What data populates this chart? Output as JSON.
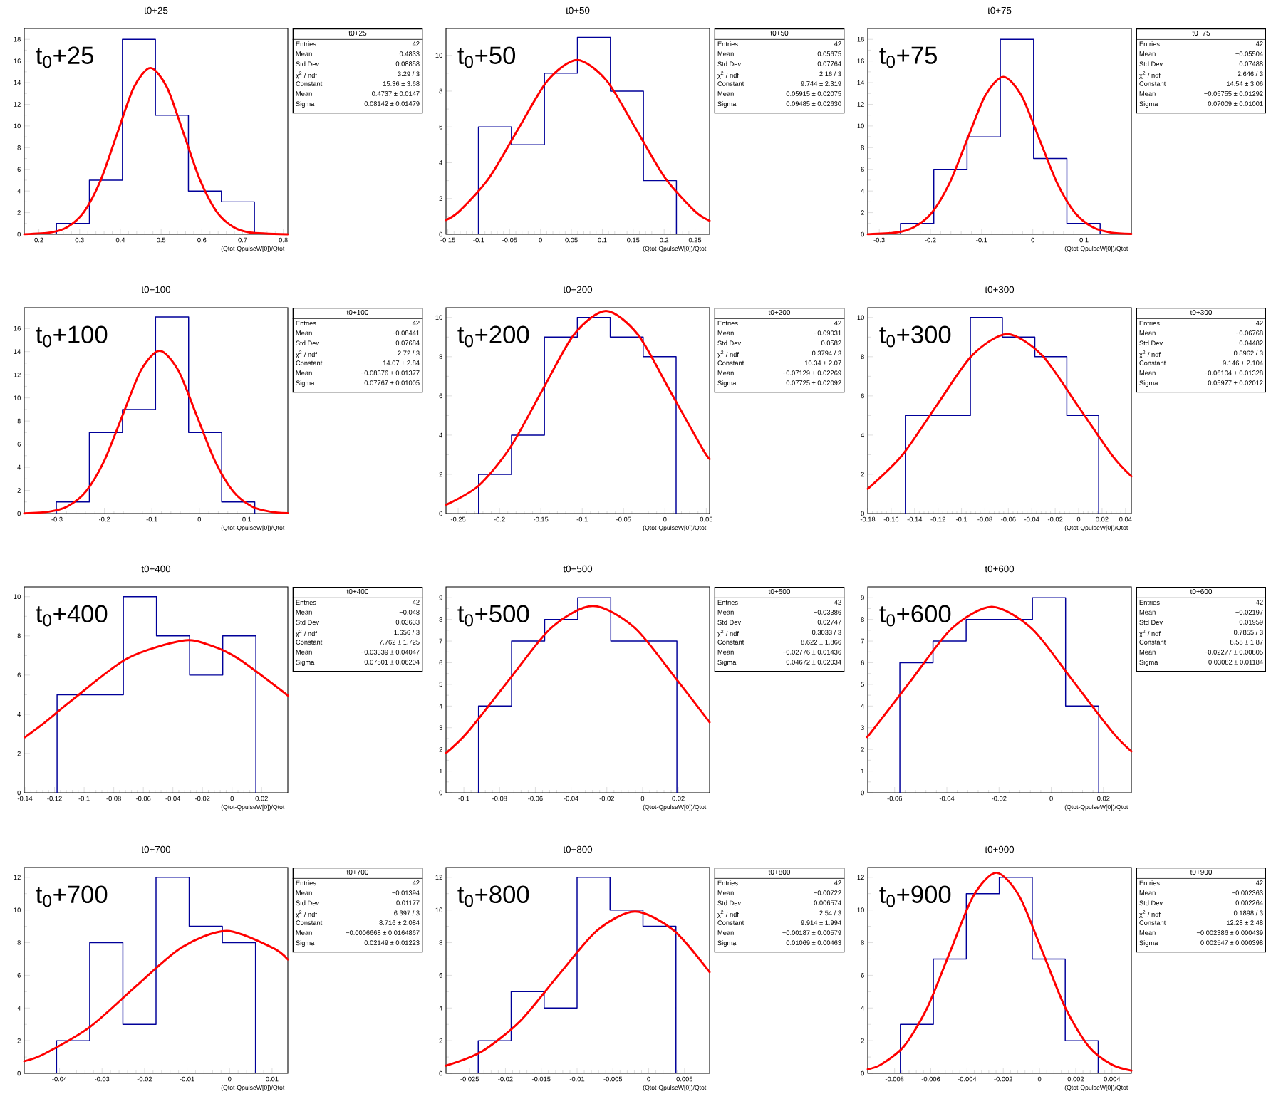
{
  "chart_data": [
    {
      "type": "histogram",
      "title": "t0+25",
      "xlabel": "(Qtot-QpulseW[0])/Qtot",
      "xlim": [
        0.164,
        0.811
      ],
      "ylim": [
        0,
        19
      ],
      "xticks": [
        0.2,
        0.3,
        0.4,
        0.5,
        0.6,
        0.7,
        0.8
      ],
      "yticks": [
        0,
        2,
        4,
        6,
        8,
        10,
        12,
        14,
        16,
        18
      ],
      "annotations": [
        "t$_{0}$+25",
        "t0+25",
        "Entries",
        "42",
        "Mean",
        "0.4833",
        "Std Dev",
        "0.08858",
        "χ$^{2}$ / ndf",
        "3.29 / 3",
        "Constant",
        "15.36 ± 3.68",
        "Mean",
        "0.4737 ± 0.0147",
        "Sigma",
        "0.08142 ± 0.01479"
      ],
      "series": [
        {
          "type": "histogram",
          "color": "#000099",
          "bins": [
            0.243,
            0.324,
            0.405,
            0.486,
            0.567,
            0.648,
            0.729
          ],
          "values": [
            1,
            5,
            18,
            11,
            4,
            3
          ]
        },
        {
          "type": "line",
          "color": "#ff0000",
          "x": [
            0.164,
            0.2294,
            0.2702,
            0.3109,
            0.3516,
            0.3923,
            0.433,
            0.4737,
            0.5144,
            0.5551,
            0.5958,
            0.6365,
            0.6773,
            0.718,
            0.811
          ],
          "values": [
            0.01,
            0.17,
            0.67,
            2.08,
            4.99,
            9.32,
            13.56,
            15.36,
            13.56,
            9.32,
            4.99,
            2.08,
            0.67,
            0.17,
            0.0
          ]
        }
      ]
    },
    {
      "type": "histogram",
      "title": "t0+50",
      "xlabel": "(Qtot-QpulseW[0])/Qtot",
      "xlim": [
        -0.153,
        0.2736
      ],
      "ylim": [
        0,
        11.5
      ],
      "xticks": [
        -0.15,
        -0.1,
        -0.05,
        0,
        0.05,
        0.1,
        0.15,
        0.2,
        0.25
      ],
      "yticks": [
        0,
        2,
        4,
        6,
        8,
        10
      ],
      "annotations": [
        "t$_{0}$+50",
        "t0+50",
        "Entries",
        "42",
        "Mean",
        "0.05675",
        "Std Dev",
        "0.07764",
        "χ$^{2}$ / ndf",
        "2.16 / 3",
        "Constant",
        "9.744 ± 2.319",
        "Mean",
        "0.05915 ± 0.02075",
        "Sigma",
        "0.09485 ± 0.02630"
      ],
      "series": [
        {
          "type": "histogram",
          "color": "#000099",
          "bins": [
            -0.1005,
            -0.0471,
            0.0063,
            0.0597,
            0.1131,
            0.1665,
            0.2199
          ],
          "values": [
            6,
            5,
            9,
            11,
            8,
            3
          ]
        },
        {
          "type": "line",
          "color": "#ff0000",
          "x": [
            -0.153,
            -0.1306,
            -0.0831,
            -0.0357,
            0.0117,
            0.0592,
            0.1066,
            0.154,
            0.2014,
            0.2489,
            0.2736
          ],
          "values": [
            0.8,
            1.32,
            3.16,
            5.91,
            8.6,
            9.74,
            8.6,
            5.91,
            3.16,
            1.32,
            0.76
          ]
        }
      ]
    },
    {
      "type": "histogram",
      "title": "t0+75",
      "xlabel": "(Qtot-QpulseW[0])/Qtot",
      "xlim": [
        -0.3225,
        0.1925
      ],
      "ylim": [
        0,
        19
      ],
      "xticks": [
        -0.3,
        -0.2,
        -0.1,
        0,
        0.1
      ],
      "yticks": [
        0,
        2,
        4,
        6,
        8,
        10,
        12,
        14,
        16,
        18
      ],
      "annotations": [
        "t$_{0}$+75",
        "t0+75",
        "Entries",
        "42",
        "Mean",
        "−0.05504",
        "Std Dev",
        "0.07488",
        "χ$^{2}$ / ndf",
        "2.646 / 3",
        "Constant",
        "14.54 ± 3.06",
        "Mean",
        "−0.05755 ± 0.01292",
        "Sigma",
        "0.07009 ± 0.01001"
      ],
      "series": [
        {
          "type": "histogram",
          "color": "#000099",
          "bins": [
            -0.2585,
            -0.1935,
            -0.1285,
            -0.0635,
            0.0015,
            0.0665,
            0.1315
          ],
          "values": [
            1,
            6,
            9,
            18,
            7,
            1
          ]
        },
        {
          "type": "line",
          "color": "#ff0000",
          "x": [
            -0.3225,
            -0.2678,
            -0.2328,
            -0.1977,
            -0.1627,
            -0.1277,
            -0.0926,
            -0.0576,
            -0.0225,
            0.0125,
            0.0476,
            0.0826,
            0.1177,
            0.1527,
            0.1925
          ],
          "values": [
            0.01,
            0.16,
            0.64,
            1.97,
            4.72,
            8.82,
            12.83,
            14.54,
            12.83,
            8.82,
            4.72,
            1.97,
            0.64,
            0.16,
            0.03
          ]
        }
      ]
    },
    {
      "type": "histogram",
      "title": "t0+100",
      "xlabel": "(Qtot-QpulseW[0])/Qtot",
      "xlim": [
        -0.369,
        0.1865
      ],
      "ylim": [
        0,
        17.8
      ],
      "xticks": [
        -0.3,
        -0.2,
        -0.1,
        0,
        0.1
      ],
      "yticks": [
        0,
        2,
        4,
        6,
        8,
        10,
        12,
        14,
        16
      ],
      "annotations": [
        "t$_{0}$+100",
        "t0+100",
        "Entries",
        "42",
        "Mean",
        "−0.08441",
        "Std Dev",
        "0.07684",
        "χ$^{2}$ / ndf",
        "2.72 / 3",
        "Constant",
        "14.07 ± 2.84",
        "Mean",
        "−0.08376 ± 0.01377",
        "Sigma",
        "0.07767 ± 0.01005"
      ],
      "series": [
        {
          "type": "histogram",
          "color": "#000099",
          "bins": [
            -0.3014,
            -0.2317,
            -0.162,
            -0.0923,
            -0.0226,
            0.0471,
            0.1168
          ],
          "values": [
            1,
            7,
            9,
            17,
            7,
            1
          ]
        },
        {
          "type": "line",
          "color": "#ff0000",
          "x": [
            -0.369,
            -0.3168,
            -0.2779,
            -0.2391,
            -0.2003,
            -0.1614,
            -0.1226,
            -0.0838,
            -0.0449,
            -0.0061,
            0.0327,
            0.0716,
            0.1104,
            0.1493,
            0.1865
          ],
          "values": [
            0.02,
            0.16,
            0.62,
            1.9,
            4.57,
            8.53,
            12.42,
            14.07,
            12.42,
            8.53,
            4.57,
            1.9,
            0.62,
            0.16,
            0.03
          ]
        }
      ]
    },
    {
      "type": "histogram",
      "title": "t0+200",
      "xlabel": "(Qtot-QpulseW[0])/Qtot",
      "xlim": [
        -0.2647,
        0.054
      ],
      "ylim": [
        0,
        10.5
      ],
      "xticks": [
        -0.25,
        -0.2,
        -0.15,
        -0.1,
        -0.05,
        0,
        0.05
      ],
      "yticks": [
        0,
        2,
        4,
        6,
        8,
        10
      ],
      "annotations": [
        "t$_{0}$+200",
        "t0+200",
        "Entries",
        "42",
        "Mean",
        "−0.09031",
        "Std Dev",
        "0.0582",
        "χ$^{2}$ / ndf",
        "0.3794 / 3",
        "Constant",
        "10.34 ± 2.07",
        "Mean",
        "−0.07129 ± 0.02269",
        "Sigma",
        "0.07725 ± 0.02092"
      ],
      "series": [
        {
          "type": "histogram",
          "color": "#000099",
          "bins": [
            -0.2253,
            -0.1855,
            -0.1457,
            -0.1059,
            -0.0661,
            -0.0263,
            0.0135
          ],
          "values": [
            2,
            4,
            9,
            10,
            9,
            8
          ]
        },
        {
          "type": "line",
          "color": "#ff0000",
          "x": [
            -0.2644,
            -0.2258,
            -0.1872,
            -0.1485,
            -0.1099,
            -0.0713,
            -0.0327,
            0.006,
            0.0446,
            0.054
          ],
          "values": [
            0.45,
            1.4,
            3.36,
            6.27,
            9.13,
            10.34,
            9.13,
            6.27,
            3.36,
            2.78
          ]
        }
      ]
    },
    {
      "type": "histogram",
      "title": "t0+300",
      "xlabel": "(Qtot-QpulseW[0])/Qtot",
      "xlim": [
        -0.18,
        0.045
      ],
      "ylim": [
        0,
        10.5
      ],
      "xticks": [
        -0.18,
        -0.16,
        -0.14,
        -0.12,
        -0.1,
        -0.08,
        -0.06,
        -0.04,
        -0.02,
        0,
        0.02,
        0.04
      ],
      "yticks": [
        0,
        2,
        4,
        6,
        8,
        10
      ],
      "annotations": [
        "t$_{0}$+300",
        "t0+300",
        "Entries",
        "42",
        "Mean",
        "−0.06768",
        "Std Dev",
        "0.04482",
        "χ$^{2}$ / ndf",
        "0.8962 / 3",
        "Constant",
        "9.146 ± 2.104",
        "Mean",
        "−0.06104 ± 0.01328",
        "Sigma",
        "0.05977 ± 0.02012"
      ],
      "series": [
        {
          "type": "histogram",
          "color": "#000099",
          "bins": [
            -0.1479,
            -0.1201,
            -0.0924,
            -0.0651,
            -0.0374,
            -0.0101,
            0.0171
          ],
          "values": [
            5,
            5,
            10,
            9,
            8,
            5
          ]
        },
        {
          "type": "line",
          "color": "#ff0000",
          "x": [
            -0.18,
            -0.1507,
            -0.1208,
            -0.0909,
            -0.061,
            -0.0312,
            -0.0013,
            0.0286,
            0.045
          ],
          "values": [
            1.26,
            2.97,
            5.55,
            8.07,
            9.15,
            8.07,
            5.55,
            2.97,
            1.9
          ]
        }
      ]
    },
    {
      "type": "histogram",
      "title": "t0+400",
      "xlabel": "(Qtot-QpulseW[0])/Qtot",
      "xlim": [
        -0.1405,
        0.0377
      ],
      "ylim": [
        0,
        10.5
      ],
      "xticks": [
        -0.14,
        -0.12,
        -0.1,
        -0.08,
        -0.06,
        -0.04,
        -0.02,
        0,
        0.02
      ],
      "yticks": [
        0,
        2,
        4,
        6,
        8,
        10
      ],
      "annotations": [
        "t$_{0}$+400",
        "t0+400",
        "Entries",
        "42",
        "Mean",
        "−0.048",
        "Std Dev",
        "0.03633",
        "χ$^{2}$ / ndf",
        "1.656 / 3",
        "Constant",
        "7.762 ± 1.725",
        "Mean",
        "−0.03339 ± 0.04047",
        "Sigma",
        "0.07501 ± 0.06204"
      ],
      "series": [
        {
          "type": "histogram",
          "color": "#000099",
          "bins": [
            -0.1183,
            -0.0959,
            -0.0735,
            -0.0511,
            -0.0287,
            -0.0063,
            0.0161
          ],
          "values": [
            5,
            5,
            10,
            8,
            6,
            8
          ]
        },
        {
          "type": "line",
          "color": "#ff0000",
          "x": [
            -0.14,
            -0.1272,
            -0.1084,
            -0.0709,
            -0.0334,
            -0.0146,
            0.0041,
            0.0377
          ],
          "values": [
            2.83,
            3.55,
            4.71,
            6.85,
            7.76,
            7.52,
            6.85,
            4.96
          ]
        }
      ]
    },
    {
      "type": "histogram",
      "title": "t0+500",
      "xlabel": "(Qtot-QpulseW[0])/Qtot",
      "xlim": [
        -0.11,
        0.0375
      ],
      "ylim": [
        0,
        9.5
      ],
      "xticks": [
        -0.1,
        -0.08,
        -0.06,
        -0.04,
        -0.02,
        0,
        0.02
      ],
      "yticks": [
        0,
        1,
        2,
        3,
        4,
        5,
        6,
        7,
        8,
        9
      ],
      "annotations": [
        "t$_{0}$+500",
        "t0+500",
        "Entries",
        "42",
        "Mean",
        "−0.03386",
        "Std Dev",
        "0.02747",
        "χ$^{2}$ / ndf",
        "0.3033 / 3",
        "Constant",
        "8.622 ± 1.866",
        "Mean",
        "−0.02776 ± 0.01436",
        "Sigma",
        "0.04672 ± 0.02034"
      ],
      "series": [
        {
          "type": "histogram",
          "color": "#000099",
          "bins": [
            -0.0918,
            -0.0733,
            -0.0548,
            -0.0363,
            -0.0178,
            0.0007,
            0.0192
          ],
          "values": [
            4,
            7,
            8,
            9,
            7,
            7
          ]
        },
        {
          "type": "line",
          "color": "#ff0000",
          "x": [
            -0.11,
            -0.0978,
            -0.0745,
            -0.0511,
            -0.0278,
            -0.0044,
            0.019,
            0.0375
          ],
          "values": [
            1.83,
            2.8,
            5.23,
            7.61,
            8.62,
            7.61,
            5.23,
            3.25
          ]
        }
      ]
    },
    {
      "type": "histogram",
      "title": "t0+600",
      "xlabel": "(Qtot-QpulseW[0])/Qtot",
      "xlim": [
        -0.0703,
        0.0307
      ],
      "ylim": [
        0,
        9.5
      ],
      "xticks": [
        -0.06,
        -0.04,
        -0.02,
        0,
        0.02
      ],
      "yticks": [
        0,
        1,
        2,
        3,
        4,
        5,
        6,
        7,
        8,
        9
      ],
      "annotations": [
        "t$_{0}$+600",
        "t0+600",
        "Entries",
        "42",
        "Mean",
        "−0.02197",
        "Std Dev",
        "0.01959",
        "χ$^{2}$ / ndf",
        "0.7855 / 3",
        "Constant",
        "8.58 ± 1.87",
        "Mean",
        "−0.02277 ± 0.00805",
        "Sigma",
        "0.03082 ± 0.01184"
      ],
      "series": [
        {
          "type": "histogram",
          "color": "#000099",
          "bins": [
            -0.058,
            -0.0453,
            -0.0326,
            -0.0199,
            -0.0072,
            0.0055,
            0.0182
          ],
          "values": [
            6,
            7,
            8,
            8,
            9,
            4
          ]
        },
        {
          "type": "line",
          "color": "#ff0000",
          "x": [
            -0.0703,
            -0.069,
            -0.0536,
            -0.0382,
            -0.0228,
            -0.0074,
            0.0081,
            0.0235,
            0.0307
          ],
          "values": [
            2.61,
            2.79,
            5.2,
            7.57,
            8.58,
            7.57,
            5.2,
            2.79,
            1.91
          ]
        }
      ]
    },
    {
      "type": "histogram",
      "title": "t0+700",
      "xlabel": "(Qtot-QpulseW[0])/Qtot",
      "xlim": [
        -0.0483,
        0.0137
      ],
      "ylim": [
        0,
        12.6
      ],
      "xticks": [
        -0.04,
        -0.03,
        -0.02,
        -0.01,
        0,
        0.01
      ],
      "yticks": [
        0,
        2,
        4,
        6,
        8,
        10,
        12
      ],
      "annotations": [
        "t$_{0}$+700",
        "t0+700",
        "Entries",
        "42",
        "Mean",
        "−0.01394",
        "Std Dev",
        "0.01177",
        "χ$^{2}$ / ndf",
        "6.397 / 3",
        "Constant",
        "8.716 ± 2.084",
        "Mean",
        "−0.0006668 ± 0.0164867",
        "Sigma",
        "0.02149 ± 0.01223"
      ],
      "series": [
        {
          "type": "histogram",
          "color": "#000099",
          "bins": [
            -0.0407,
            -0.0329,
            -0.0251,
            -0.0173,
            -0.0095,
            -0.0017,
            0.0061
          ],
          "values": [
            2,
            8,
            3,
            12,
            9,
            8
          ]
        },
        {
          "type": "line",
          "color": "#ff0000",
          "x": [
            -0.0483,
            -0.0437,
            -0.0329,
            -0.0222,
            -0.0114,
            -0.0007,
            0.0101,
            0.0137
          ],
          "values": [
            0.75,
            1.18,
            2.83,
            5.29,
            7.69,
            8.72,
            7.69,
            6.97
          ]
        }
      ]
    },
    {
      "type": "histogram",
      "title": "t0+800",
      "xlabel": "(Qtot-QpulseW[0])/Qtot",
      "xlim": [
        -0.0283,
        0.0085
      ],
      "ylim": [
        0,
        12.6
      ],
      "xticks": [
        -0.025,
        -0.02,
        -0.015,
        -0.01,
        -0.005,
        0,
        0.005
      ],
      "yticks": [
        0,
        2,
        4,
        6,
        8,
        10,
        12
      ],
      "annotations": [
        "t$_{0}$+800",
        "t0+800",
        "Entries",
        "42",
        "Mean",
        "−0.00722",
        "Std Dev",
        "0.006574",
        "χ$^{2}$ / ndf",
        "2.54 / 3",
        "Constant",
        "9.914 ± 1.994",
        "Mean",
        "−0.00187 ± 0.00579",
        "Sigma",
        "0.01069 ± 0.00463"
      ],
      "series": [
        {
          "type": "histogram",
          "color": "#000099",
          "bins": [
            -0.0238,
            -0.0192,
            -0.0146,
            -0.01,
            -0.0054,
            -0.0008,
            0.0038
          ],
          "values": [
            2,
            5,
            4,
            12,
            10,
            9
          ]
        },
        {
          "type": "line",
          "color": "#ff0000",
          "x": [
            -0.0283,
            -0.0233,
            -0.0179,
            -0.0126,
            -0.0072,
            -0.0019,
            0.0035,
            0.0085
          ],
          "values": [
            0.47,
            1.34,
            3.22,
            6.01,
            8.75,
            9.91,
            8.75,
            6.2
          ]
        }
      ]
    },
    {
      "type": "histogram",
      "title": "t0+900",
      "xlabel": "(Qtot-QpulseW[0])/Qtot",
      "xlim": [
        -0.00948,
        0.00507
      ],
      "ylim": [
        0,
        12.6
      ],
      "xticks": [
        -0.008,
        -0.006,
        -0.004,
        -0.002,
        0,
        0.002,
        0.004
      ],
      "yticks": [
        0,
        2,
        4,
        6,
        8,
        10,
        12
      ],
      "annotations": [
        "t$_{0}$+900",
        "t0+900",
        "Entries",
        "42",
        "Mean",
        "−0.002363",
        "Std Dev",
        "0.002264",
        "χ$^{2}$ / ndf",
        "0.1898 / 3",
        "Constant",
        "12.28 ± 2.48",
        "Mean",
        "−0.002386 ± 0.000439",
        "Sigma",
        "0.002547 ± 0.000398"
      ],
      "series": [
        {
          "type": "histogram",
          "color": "#000099",
          "bins": [
            -0.00768,
            -0.00586,
            -0.00404,
            -0.00222,
            -0.0004,
            0.00142,
            0.00324
          ],
          "values": [
            3,
            7,
            11,
            12,
            7,
            2
          ]
        },
        {
          "type": "line",
          "color": "#ff0000",
          "x": [
            -0.00948,
            -0.008754,
            -0.00748,
            -0.006207,
            -0.004933,
            -0.00366,
            -0.002386,
            -0.001113,
            0.000161,
            0.001435,
            0.002708,
            0.003982,
            0.00507
          ],
          "values": [
            0.25,
            0.54,
            1.66,
            3.99,
            7.45,
            10.84,
            12.28,
            10.84,
            7.45,
            3.99,
            1.66,
            0.54,
            0.17
          ]
        }
      ]
    }
  ]
}
